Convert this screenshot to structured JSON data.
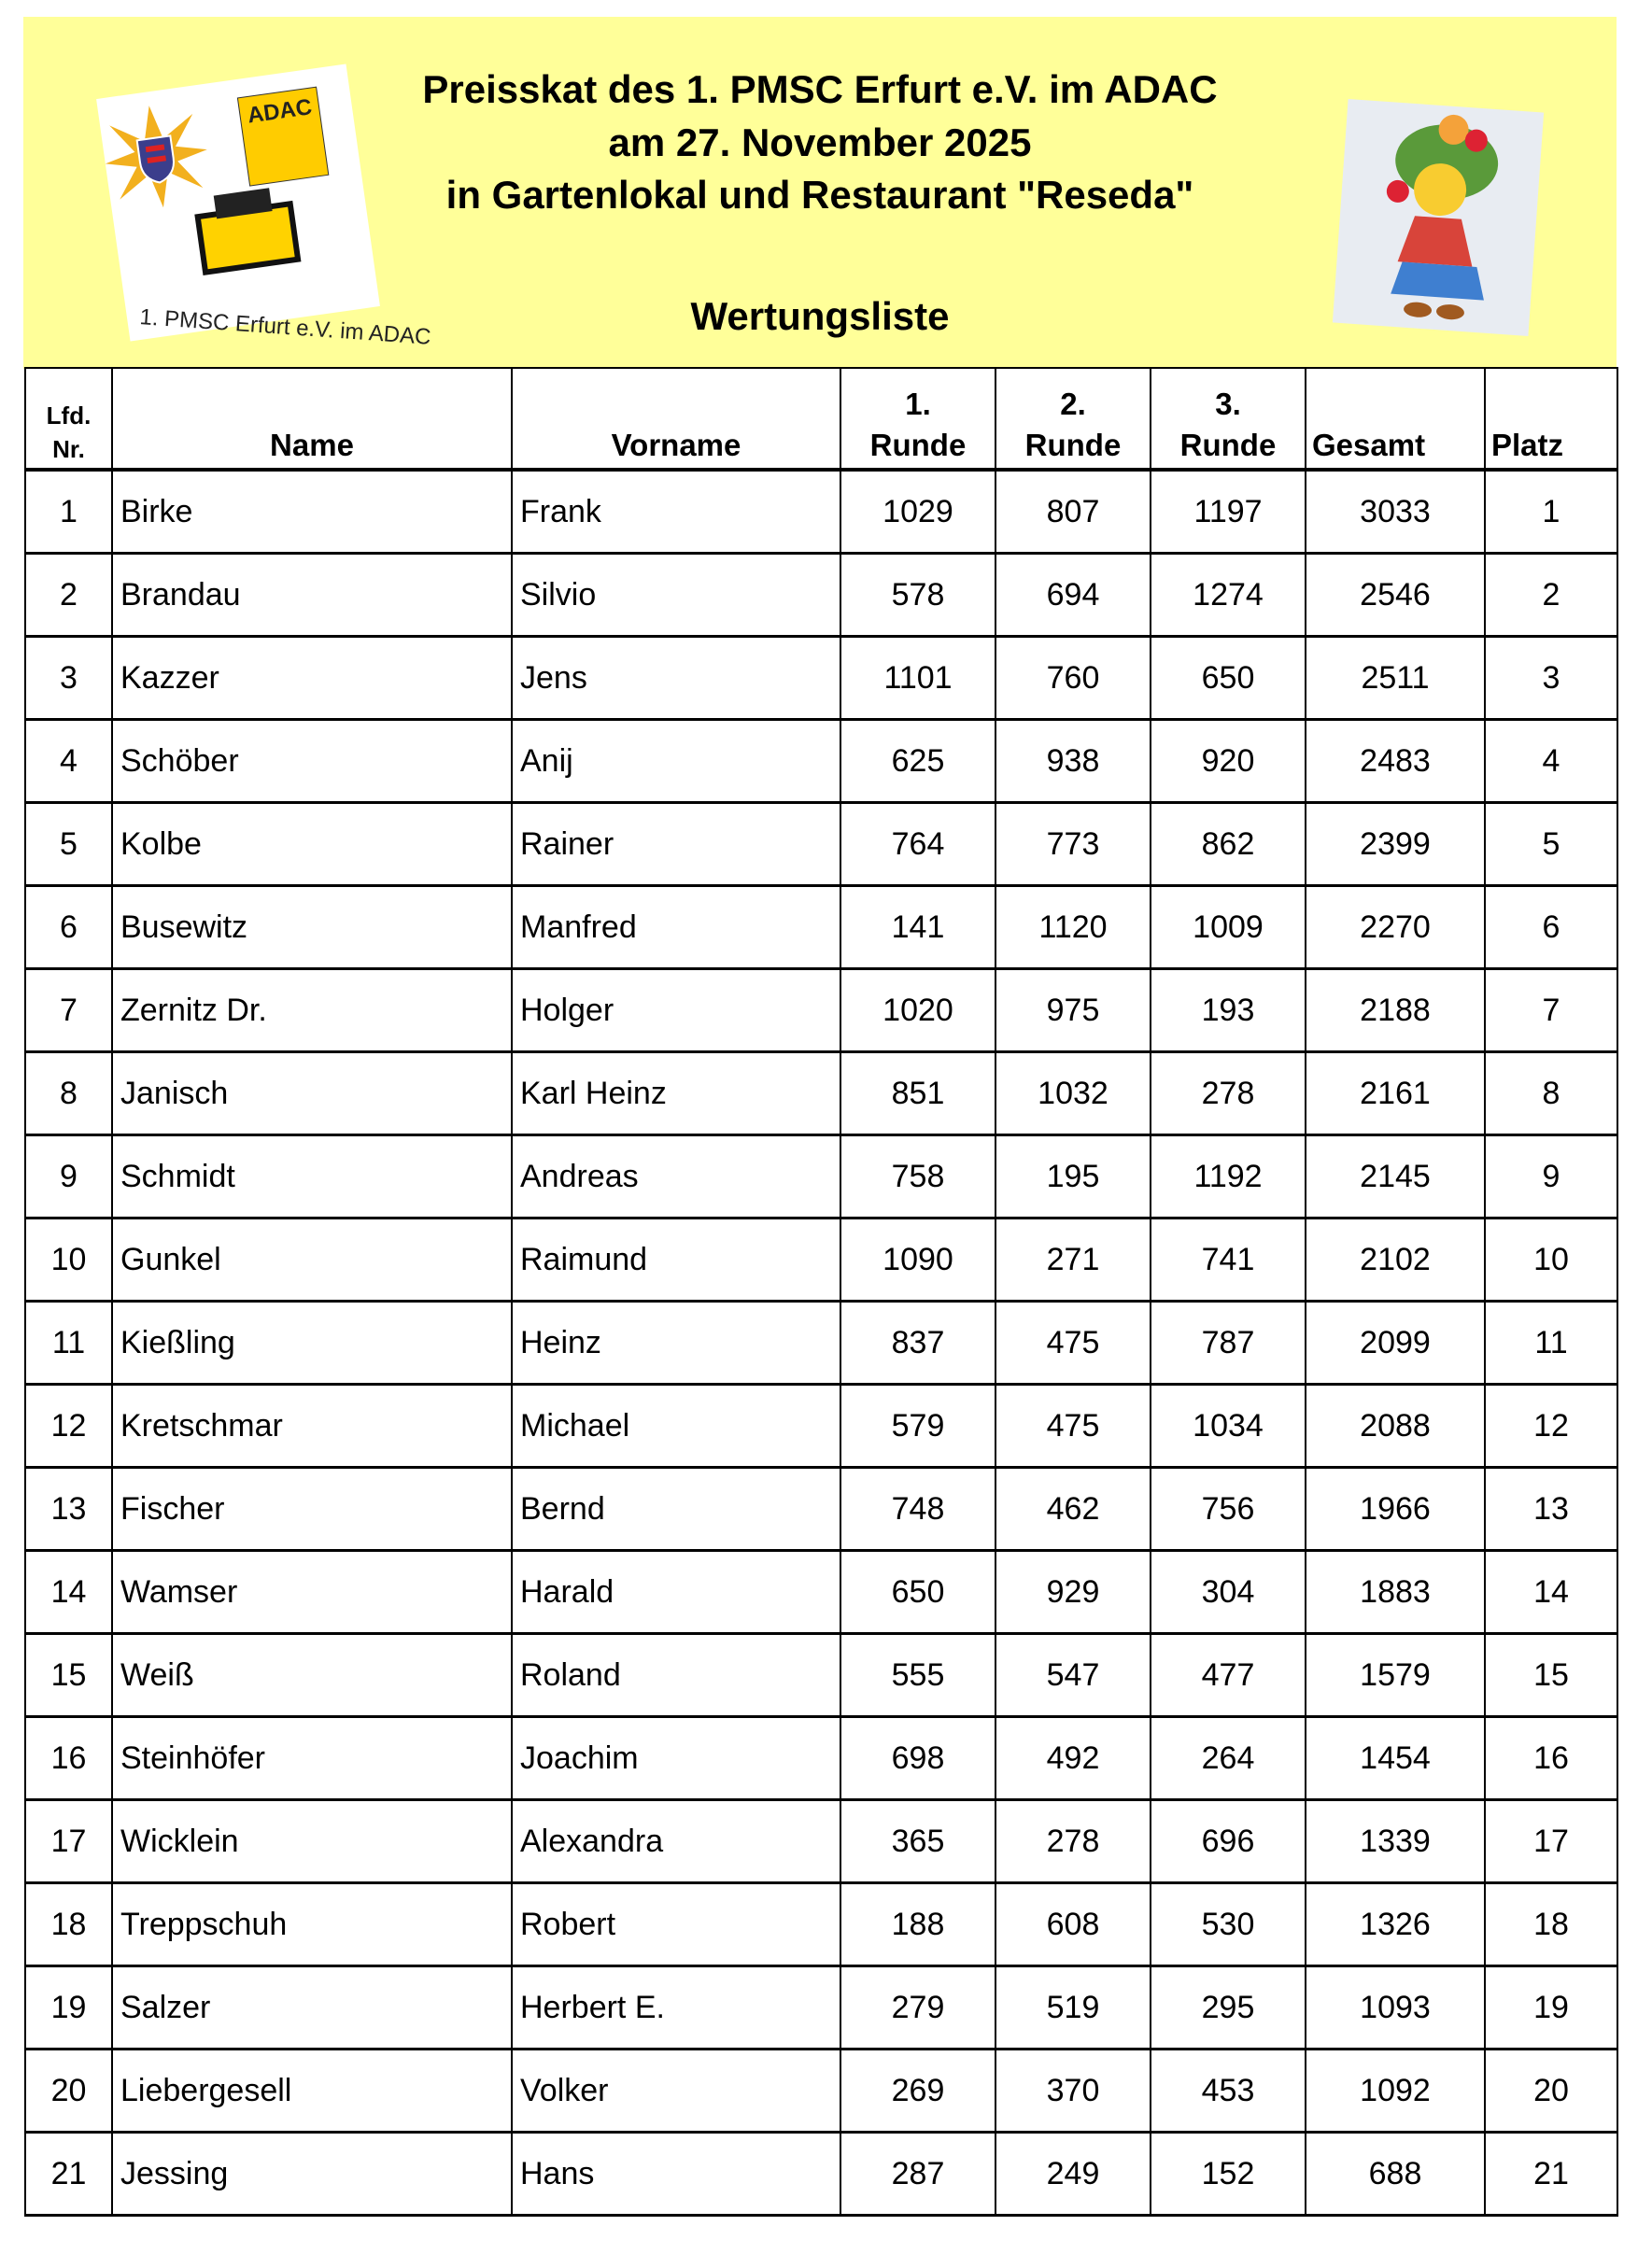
{
  "header": {
    "title_lines": [
      "Preisskat des 1. PMSC Erfurt e.V. im ADAC",
      "am 27. November 2025",
      "in Gartenlokal und Restaurant \"Reseda\""
    ],
    "subtitle": "Wertungsliste",
    "logo_left_text": "1. PMSC Erfurt e.V. im ADAC",
    "logo_left_badge": "ADAC",
    "background_color": "#ffff99"
  },
  "table": {
    "columns": [
      "Lfd. Nr.",
      "Name",
      "Vorname",
      "1. Runde",
      "2. Runde",
      "3. Runde",
      "Gesamt",
      "Platz"
    ],
    "header": {
      "nr_line1": "Lfd.",
      "nr_line2": "Nr.",
      "name": "Name",
      "vorname": "Vorname",
      "r1_line1": "1.",
      "r2_line1": "2.",
      "r3_line1": "3.",
      "runde": "Runde",
      "gesamt": "Gesamt",
      "platz": "Platz"
    },
    "rows": [
      {
        "nr": "1",
        "name": "Birke",
        "vorname": "Frank",
        "r1": "1029",
        "r2": "807",
        "r3": "1197",
        "gesamt": "3033",
        "platz": "1"
      },
      {
        "nr": "2",
        "name": "Brandau",
        "vorname": "Silvio",
        "r1": "578",
        "r2": "694",
        "r3": "1274",
        "gesamt": "2546",
        "platz": "2"
      },
      {
        "nr": "3",
        "name": "Kazzer",
        "vorname": "Jens",
        "r1": "1101",
        "r2": "760",
        "r3": "650",
        "gesamt": "2511",
        "platz": "3"
      },
      {
        "nr": "4",
        "name": "Schöber",
        "vorname": "Anij",
        "r1": "625",
        "r2": "938",
        "r3": "920",
        "gesamt": "2483",
        "platz": "4"
      },
      {
        "nr": "5",
        "name": "Kolbe",
        "vorname": "Rainer",
        "r1": "764",
        "r2": "773",
        "r3": "862",
        "gesamt": "2399",
        "platz": "5"
      },
      {
        "nr": "6",
        "name": "Busewitz",
        "vorname": "Manfred",
        "r1": "141",
        "r2": "1120",
        "r3": "1009",
        "gesamt": "2270",
        "platz": "6"
      },
      {
        "nr": "7",
        "name": "Zernitz Dr.",
        "vorname": "Holger",
        "r1": "1020",
        "r2": "975",
        "r3": "193",
        "gesamt": "2188",
        "platz": "7"
      },
      {
        "nr": "8",
        "name": "Janisch",
        "vorname": "Karl Heinz",
        "r1": "851",
        "r2": "1032",
        "r3": "278",
        "gesamt": "2161",
        "platz": "8"
      },
      {
        "nr": "9",
        "name": "Schmidt",
        "vorname": "Andreas",
        "r1": "758",
        "r2": "195",
        "r3": "1192",
        "gesamt": "2145",
        "platz": "9"
      },
      {
        "nr": "10",
        "name": "Gunkel",
        "vorname": "Raimund",
        "r1": "1090",
        "r2": "271",
        "r3": "741",
        "gesamt": "2102",
        "platz": "10"
      },
      {
        "nr": "11",
        "name": "Kießling",
        "vorname": "Heinz",
        "r1": "837",
        "r2": "475",
        "r3": "787",
        "gesamt": "2099",
        "platz": "11"
      },
      {
        "nr": "12",
        "name": "Kretschmar",
        "vorname": "Michael",
        "r1": "579",
        "r2": "475",
        "r3": "1034",
        "gesamt": "2088",
        "platz": "12"
      },
      {
        "nr": "13",
        "name": "Fischer",
        "vorname": "Bernd",
        "r1": "748",
        "r2": "462",
        "r3": "756",
        "gesamt": "1966",
        "platz": "13"
      },
      {
        "nr": "14",
        "name": "Wamser",
        "vorname": "Harald",
        "r1": "650",
        "r2": "929",
        "r3": "304",
        "gesamt": "1883",
        "platz": "14"
      },
      {
        "nr": "15",
        "name": "Weiß",
        "vorname": "Roland",
        "r1": "555",
        "r2": "547",
        "r3": "477",
        "gesamt": "1579",
        "platz": "15"
      },
      {
        "nr": "16",
        "name": "Steinhöfer",
        "vorname": "Joachim",
        "r1": "698",
        "r2": "492",
        "r3": "264",
        "gesamt": "1454",
        "platz": "16"
      },
      {
        "nr": "17",
        "name": "Wicklein",
        "vorname": "Alexandra",
        "r1": "365",
        "r2": "278",
        "r3": "696",
        "gesamt": "1339",
        "platz": "17"
      },
      {
        "nr": "18",
        "name": "Treppschuh",
        "vorname": "Robert",
        "r1": "188",
        "r2": "608",
        "r3": "530",
        "gesamt": "1326",
        "platz": "18"
      },
      {
        "nr": "19",
        "name": "Salzer",
        "vorname": "Herbert E.",
        "r1": "279",
        "r2": "519",
        "r3": "295",
        "gesamt": "1093",
        "platz": "19"
      },
      {
        "nr": "20",
        "name": "Liebergesell",
        "vorname": "Volker",
        "r1": "269",
        "r2": "370",
        "r3": "453",
        "gesamt": "1092",
        "platz": "20"
      },
      {
        "nr": "21",
        "name": "Jessing",
        "vorname": "Hans",
        "r1": "287",
        "r2": "249",
        "r3": "152",
        "gesamt": "688",
        "platz": "21"
      }
    ]
  }
}
